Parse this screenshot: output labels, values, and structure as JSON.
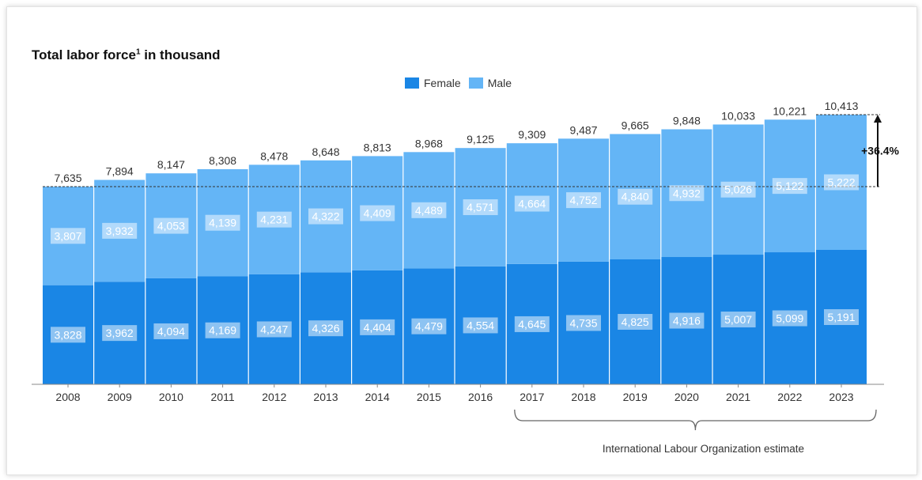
{
  "chart_data": {
    "type": "bar",
    "stacked": true,
    "title": "Total labor force",
    "title_sup": "1",
    "title_suffix": " in thousand",
    "categories": [
      "2008",
      "2009",
      "2010",
      "2011",
      "2012",
      "2013",
      "2014",
      "2015",
      "2016",
      "2017",
      "2018",
      "2019",
      "2020",
      "2021",
      "2022",
      "2023"
    ],
    "series": [
      {
        "name": "Female",
        "color": "#1a86e5",
        "values": [
          3828,
          3962,
          4094,
          4169,
          4247,
          4326,
          4404,
          4479,
          4554,
          4645,
          4735,
          4825,
          4916,
          5007,
          5099,
          5191
        ]
      },
      {
        "name": "Male",
        "color": "#64b5f6",
        "values": [
          3807,
          3932,
          4053,
          4139,
          4231,
          4322,
          4409,
          4489,
          4571,
          4664,
          4752,
          4840,
          4932,
          5026,
          5122,
          5222
        ]
      }
    ],
    "totals": [
      7635,
      7894,
      8147,
      8308,
      8478,
      8648,
      8813,
      8968,
      9125,
      9309,
      9487,
      9665,
      9848,
      10033,
      10221,
      10413
    ],
    "growth_label": "+36.4%",
    "estimate_label": "International Labour Organization estimate",
    "estimate_range": [
      "2017",
      "2023"
    ],
    "legend_position": "top-center",
    "grid": false
  }
}
